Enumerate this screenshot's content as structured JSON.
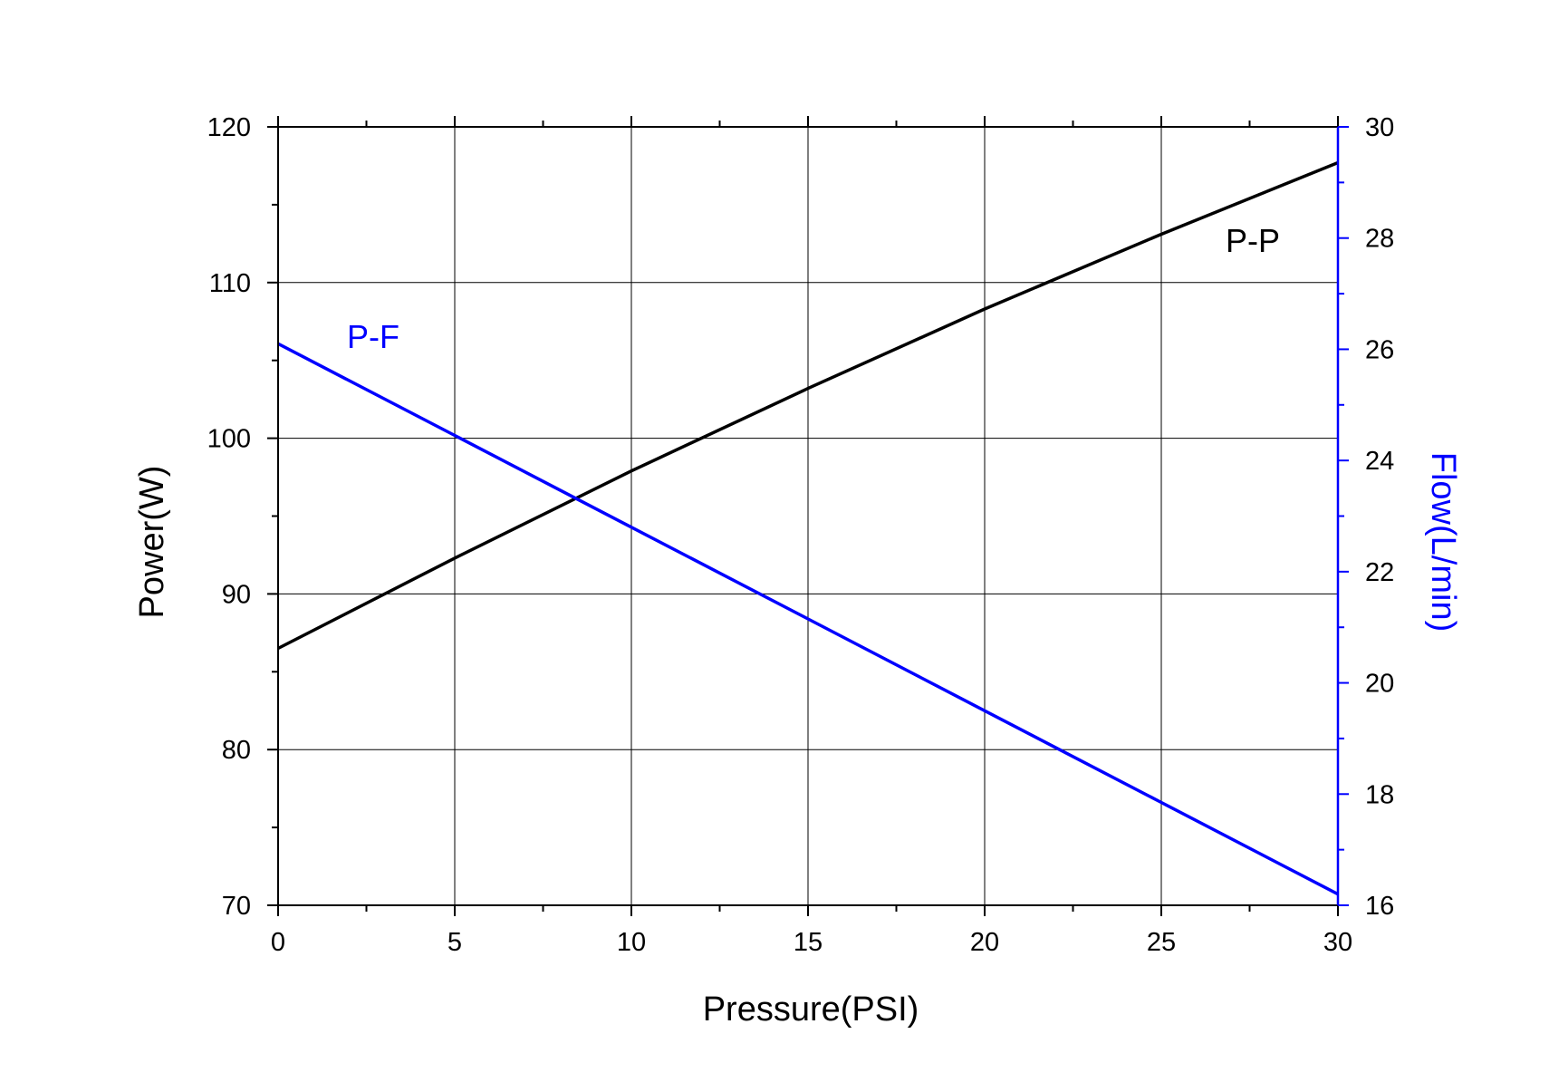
{
  "chart_data": {
    "type": "line",
    "title": "",
    "xlabel": "Pressure(PSI)",
    "ylabel": "Power(W)",
    "y2label": "Flow(L/min)",
    "xlim": [
      0,
      30
    ],
    "ylim": [
      70,
      120
    ],
    "y2lim": [
      16,
      30
    ],
    "x_ticks": [
      "0",
      "5",
      "10",
      "15",
      "20",
      "25",
      "30"
    ],
    "y_ticks": [
      "70",
      "80",
      "90",
      "100",
      "110",
      "120"
    ],
    "y2_ticks": [
      "16",
      "18",
      "20",
      "22",
      "24",
      "26",
      "28",
      "30"
    ],
    "grid": true,
    "colors": {
      "pp": "#000000",
      "pf": "#0000ff",
      "grid": "#000000"
    },
    "series": [
      {
        "name": "P-P",
        "axis": "left",
        "x": [
          0,
          5,
          10,
          15,
          20,
          25,
          30
        ],
        "values": [
          86.5,
          92.3,
          97.9,
          103.2,
          108.3,
          113.1,
          117.7
        ]
      },
      {
        "name": "P-F",
        "axis": "right",
        "x": [
          0,
          5,
          10,
          15,
          20,
          25,
          30
        ],
        "values": [
          26.1,
          24.45,
          22.8,
          21.15,
          19.5,
          17.85,
          16.2
        ]
      }
    ]
  }
}
